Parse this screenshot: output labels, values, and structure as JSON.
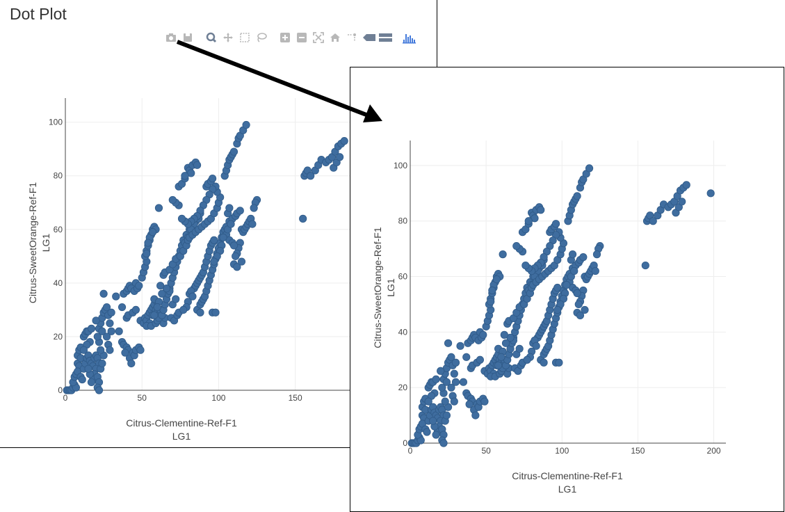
{
  "page": {
    "title": "Dot Plot"
  },
  "toolbar": {
    "buttons": [
      {
        "name": "camera-icon"
      },
      {
        "name": "save-icon"
      },
      {
        "sep": true
      },
      {
        "name": "zoom-icon"
      },
      {
        "name": "pan-icon"
      },
      {
        "name": "box-select-icon"
      },
      {
        "name": "lasso-select-icon"
      },
      {
        "sep": true
      },
      {
        "name": "zoom-in-icon"
      },
      {
        "name": "zoom-out-icon"
      },
      {
        "name": "autoscale-icon"
      },
      {
        "name": "home-icon"
      },
      {
        "name": "spike-lines-icon"
      },
      {
        "name": "hover-closest-icon"
      },
      {
        "name": "hover-compare-icon"
      },
      {
        "sep": true
      },
      {
        "name": "plotly-logo-icon"
      }
    ]
  },
  "colors": {
    "marker": "#3f6d9f",
    "marker_outline": "#2f5a88",
    "grid": "#eeeeee",
    "axis": "#444444"
  },
  "chart_data": [
    {
      "type": "scatter",
      "xlabel": [
        "Citrus-Clementine-Ref-F1",
        "LG1"
      ],
      "ylabel": [
        "Citrus-SweetOrange-Ref-F1",
        "LG1"
      ],
      "xlim": [
        0,
        186
      ],
      "ylim": [
        0,
        109
      ],
      "xticks": [
        0,
        50,
        100,
        150
      ],
      "yticks": [
        0,
        20,
        40,
        60,
        80,
        100
      ],
      "grid": true,
      "legend": "none",
      "excluded_series": [
        "right"
      ]
    },
    {
      "type": "scatter",
      "xlabel": [
        "Citrus-Clementine-Ref-F1",
        "LG1"
      ],
      "ylabel": [
        "Citrus-SweetOrange-Ref-F1",
        "LG1"
      ],
      "xlim": [
        0,
        208
      ],
      "ylim": [
        0,
        109
      ],
      "xticks": [
        0,
        50,
        100,
        150,
        200
      ],
      "yticks": [
        0,
        20,
        40,
        60,
        80,
        100
      ],
      "grid": true,
      "legend": "none"
    }
  ],
  "series": {
    "main": [
      [
        1,
        0
      ],
      [
        2,
        0
      ],
      [
        3,
        0
      ],
      [
        4,
        0
      ],
      [
        5,
        1
      ],
      [
        6,
        2
      ],
      [
        7,
        1
      ],
      [
        5,
        3
      ],
      [
        6,
        5
      ],
      [
        7,
        6
      ],
      [
        8,
        10
      ],
      [
        8,
        13
      ],
      [
        9,
        15
      ],
      [
        10,
        16
      ],
      [
        12,
        20
      ],
      [
        13,
        21
      ],
      [
        14,
        22
      ],
      [
        15,
        22
      ],
      [
        17,
        23
      ],
      [
        16,
        18
      ],
      [
        14,
        17
      ],
      [
        12,
        15
      ],
      [
        10,
        12
      ],
      [
        9,
        9
      ],
      [
        8,
        7
      ],
      [
        10,
        5
      ],
      [
        11,
        4
      ],
      [
        12,
        8
      ],
      [
        13,
        10
      ],
      [
        14,
        12
      ],
      [
        15,
        13
      ],
      [
        16,
        11
      ],
      [
        17,
        10
      ],
      [
        18,
        9
      ],
      [
        19,
        12
      ],
      [
        20,
        13
      ],
      [
        21,
        12
      ],
      [
        22,
        10
      ],
      [
        20,
        8
      ],
      [
        19,
        6
      ],
      [
        18,
        4
      ],
      [
        17,
        3
      ],
      [
        16,
        6
      ],
      [
        15,
        8
      ],
      [
        21,
        5
      ],
      [
        22,
        3
      ],
      [
        21,
        1
      ],
      [
        22,
        0
      ],
      [
        23,
        8
      ],
      [
        24,
        10
      ],
      [
        25,
        13
      ],
      [
        23,
        15
      ],
      [
        22,
        18
      ],
      [
        21,
        20
      ],
      [
        22,
        23
      ],
      [
        23,
        25
      ],
      [
        24,
        27
      ],
      [
        25,
        29
      ],
      [
        26,
        30
      ],
      [
        27,
        31
      ],
      [
        28,
        28
      ],
      [
        29,
        25
      ],
      [
        30,
        22
      ],
      [
        27,
        20
      ],
      [
        28,
        17
      ],
      [
        29,
        15
      ],
      [
        24,
        22
      ],
      [
        20,
        26
      ],
      [
        25,
        36
      ],
      [
        30,
        29
      ],
      [
        33,
        35
      ],
      [
        35,
        22
      ],
      [
        37,
        18
      ],
      [
        38,
        17
      ],
      [
        40,
        16
      ],
      [
        41,
        15
      ],
      [
        42,
        12
      ],
      [
        43,
        10
      ],
      [
        44,
        14
      ],
      [
        45,
        13
      ],
      [
        46,
        15
      ],
      [
        48,
        16
      ],
      [
        49,
        15
      ],
      [
        39,
        14
      ],
      [
        40,
        27
      ],
      [
        41,
        28
      ],
      [
        44,
        29
      ],
      [
        46,
        30
      ],
      [
        37,
        31
      ],
      [
        38,
        36
      ],
      [
        40,
        37
      ],
      [
        41,
        38
      ],
      [
        42,
        39
      ],
      [
        43,
        38
      ],
      [
        45,
        37
      ],
      [
        46,
        40
      ],
      [
        47,
        38
      ],
      [
        48,
        39
      ],
      [
        50,
        42
      ],
      [
        51,
        44
      ],
      [
        52,
        46
      ],
      [
        53,
        48
      ],
      [
        52,
        50
      ],
      [
        53,
        52
      ],
      [
        54,
        54
      ],
      [
        55,
        56
      ],
      [
        56,
        58
      ],
      [
        57,
        60
      ],
      [
        58,
        61
      ],
      [
        59,
        60
      ],
      [
        55,
        57
      ],
      [
        54,
        55
      ],
      [
        53,
        51
      ],
      [
        57,
        59
      ],
      [
        49,
        26
      ],
      [
        51,
        25
      ],
      [
        52,
        27
      ],
      [
        53,
        26
      ],
      [
        54,
        28
      ],
      [
        55,
        29
      ],
      [
        56,
        30
      ],
      [
        57,
        31
      ],
      [
        58,
        32
      ],
      [
        59,
        30
      ],
      [
        60,
        29
      ],
      [
        61,
        28
      ],
      [
        62,
        27
      ],
      [
        63,
        26
      ],
      [
        64,
        25
      ],
      [
        65,
        27
      ],
      [
        62,
        30
      ],
      [
        60,
        33
      ],
      [
        58,
        34
      ],
      [
        57,
        28
      ],
      [
        55,
        25
      ],
      [
        53,
        24
      ],
      [
        56,
        24
      ],
      [
        59,
        25
      ],
      [
        60,
        26
      ],
      [
        61,
        27
      ],
      [
        63,
        28
      ],
      [
        64,
        30
      ],
      [
        65,
        32
      ],
      [
        66,
        34
      ],
      [
        67,
        36
      ],
      [
        68,
        38
      ],
      [
        69,
        40
      ],
      [
        70,
        42
      ],
      [
        71,
        44
      ],
      [
        72,
        46
      ],
      [
        73,
        48
      ],
      [
        74,
        50
      ],
      [
        75,
        52
      ],
      [
        76,
        54
      ],
      [
        77,
        56
      ],
      [
        79,
        58
      ],
      [
        81,
        60
      ],
      [
        83,
        61
      ],
      [
        85,
        63
      ],
      [
        87,
        64
      ],
      [
        88,
        66
      ],
      [
        86,
        65
      ],
      [
        84,
        62
      ],
      [
        82,
        60
      ],
      [
        80,
        57
      ],
      [
        78,
        55
      ],
      [
        70,
        32
      ],
      [
        72,
        34
      ],
      [
        68,
        37
      ],
      [
        66,
        38
      ],
      [
        62,
        39
      ],
      [
        63,
        36
      ],
      [
        61,
        33
      ],
      [
        60,
        31
      ],
      [
        58,
        28
      ],
      [
        69,
        27
      ],
      [
        71,
        26
      ],
      [
        73,
        28
      ],
      [
        74,
        29
      ],
      [
        64,
        43
      ],
      [
        65,
        44
      ],
      [
        68,
        45
      ],
      [
        70,
        47
      ],
      [
        72,
        49
      ],
      [
        75,
        50
      ],
      [
        77,
        52
      ],
      [
        79,
        54
      ],
      [
        80,
        56
      ],
      [
        81,
        57
      ],
      [
        83,
        58
      ],
      [
        85,
        59
      ],
      [
        87,
        60
      ],
      [
        89,
        61
      ],
      [
        91,
        62
      ],
      [
        93,
        63
      ],
      [
        95,
        64
      ],
      [
        97,
        66
      ],
      [
        99,
        68
      ],
      [
        100,
        70
      ],
      [
        101,
        72
      ],
      [
        99,
        74
      ],
      [
        98,
        76
      ],
      [
        96,
        75
      ],
      [
        94,
        73
      ],
      [
        92,
        71
      ],
      [
        90,
        69
      ],
      [
        88,
        67
      ],
      [
        86,
        65
      ],
      [
        84,
        64
      ],
      [
        82,
        63
      ],
      [
        80,
        62
      ],
      [
        78,
        63
      ],
      [
        76,
        64
      ],
      [
        74,
        69
      ],
      [
        72,
        70
      ],
      [
        70,
        71
      ],
      [
        74,
        76
      ],
      [
        76,
        77
      ],
      [
        78,
        79
      ],
      [
        80,
        83
      ],
      [
        81,
        82
      ],
      [
        82,
        81
      ],
      [
        83,
        84
      ],
      [
        85,
        85
      ],
      [
        86,
        84
      ],
      [
        92,
        76
      ],
      [
        93,
        77
      ],
      [
        95,
        78
      ],
      [
        96,
        79
      ],
      [
        61,
        68
      ],
      [
        78,
        80
      ],
      [
        86,
        30
      ],
      [
        88,
        32
      ],
      [
        89,
        33
      ],
      [
        90,
        34
      ],
      [
        91,
        35
      ],
      [
        92,
        37
      ],
      [
        93,
        39
      ],
      [
        94,
        41
      ],
      [
        95,
        43
      ],
      [
        96,
        45
      ],
      [
        97,
        47
      ],
      [
        98,
        49
      ],
      [
        99,
        51
      ],
      [
        100,
        53
      ],
      [
        101,
        55
      ],
      [
        102,
        57
      ],
      [
        103,
        59
      ],
      [
        104,
        60
      ],
      [
        105,
        61
      ],
      [
        107,
        63
      ],
      [
        109,
        64
      ],
      [
        111,
        65
      ],
      [
        112,
        66
      ],
      [
        114,
        67
      ],
      [
        115,
        60
      ],
      [
        116,
        59
      ],
      [
        117,
        60
      ],
      [
        118,
        61
      ],
      [
        119,
        62
      ],
      [
        120,
        63
      ],
      [
        121,
        64
      ],
      [
        122,
        62
      ],
      [
        114,
        55
      ],
      [
        113,
        53
      ],
      [
        112,
        51
      ],
      [
        111,
        50
      ],
      [
        110,
        47
      ],
      [
        112,
        46
      ],
      [
        115,
        48
      ],
      [
        84,
        38
      ],
      [
        85,
        39
      ],
      [
        86,
        40
      ],
      [
        87,
        41
      ],
      [
        88,
        42
      ],
      [
        89,
        43
      ],
      [
        90,
        44
      ],
      [
        91,
        46
      ],
      [
        92,
        48
      ],
      [
        93,
        50
      ],
      [
        94,
        52
      ],
      [
        95,
        54
      ],
      [
        96,
        55
      ],
      [
        97,
        56
      ],
      [
        81,
        36
      ],
      [
        82,
        37
      ],
      [
        83,
        35
      ],
      [
        80,
        33
      ],
      [
        79,
        31
      ],
      [
        77,
        30
      ],
      [
        88,
        29
      ],
      [
        96,
        29
      ],
      [
        98,
        29
      ],
      [
        104,
        80
      ],
      [
        105,
        82
      ],
      [
        106,
        84
      ],
      [
        107,
        86
      ],
      [
        108,
        87
      ],
      [
        109,
        88
      ],
      [
        110,
        89
      ],
      [
        112,
        92
      ],
      [
        113,
        94
      ],
      [
        114,
        95
      ],
      [
        116,
        97
      ],
      [
        118,
        99
      ],
      [
        125,
        71
      ],
      [
        124,
        70
      ],
      [
        123,
        68
      ],
      [
        105,
        58
      ],
      [
        107,
        56
      ],
      [
        109,
        55
      ],
      [
        110,
        54
      ],
      [
        106,
        60
      ],
      [
        108,
        62
      ],
      [
        103,
        57
      ],
      [
        102,
        54
      ],
      [
        101,
        52
      ],
      [
        99,
        50
      ],
      [
        97,
        48
      ],
      [
        106,
        66
      ],
      [
        107,
        68
      ],
      [
        155,
        64
      ],
      [
        156,
        80
      ],
      [
        157,
        81
      ],
      [
        158,
        82
      ],
      [
        160,
        80
      ],
      [
        163,
        82
      ],
      [
        165,
        84
      ],
      [
        167,
        86
      ],
      [
        170,
        85
      ],
      [
        172,
        86
      ],
      [
        174,
        87
      ],
      [
        176,
        89
      ],
      [
        178,
        91
      ],
      [
        180,
        92
      ],
      [
        182,
        93
      ],
      [
        175,
        83
      ],
      [
        177,
        85
      ],
      [
        179,
        87
      ]
    ],
    "right": [
      [
        198,
        90
      ]
    ]
  }
}
